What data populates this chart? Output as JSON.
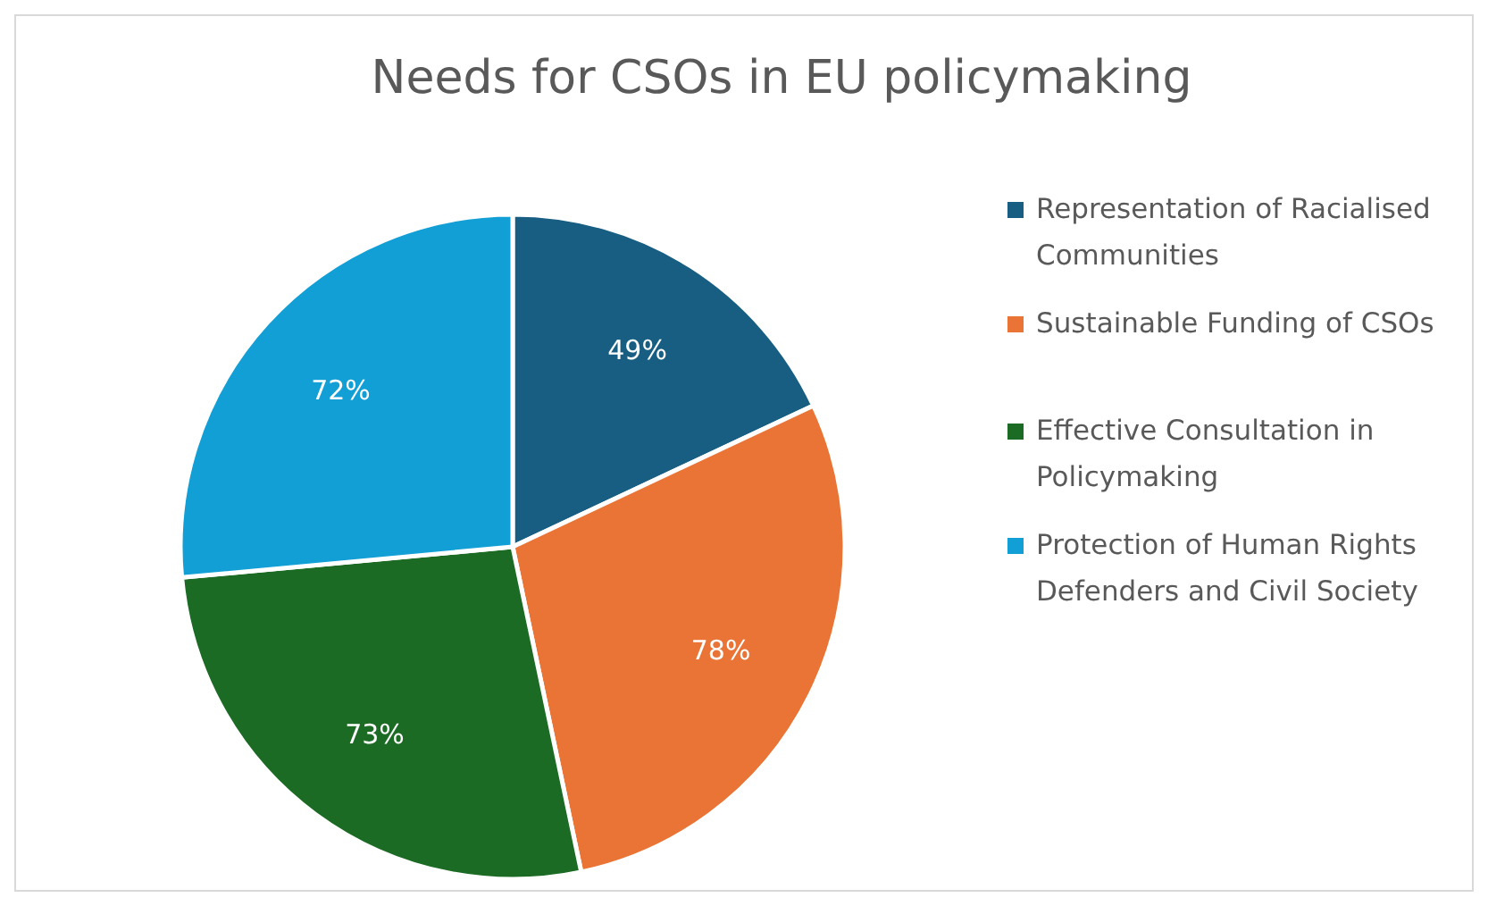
{
  "chart_data": {
    "type": "pie",
    "title": "Needs for CSOs in EU policymaking",
    "categories": [
      "Representation of Racialised Communities",
      "Sustainable Funding of CSOs",
      "Effective Consultation in Policymaking",
      "Protection of Human Rights Defenders and Civil Society"
    ],
    "values": [
      49,
      78,
      73,
      72
    ],
    "value_labels": [
      "49%",
      "78%",
      "73%",
      "72%"
    ],
    "colors": [
      "#175e82",
      "#e97435",
      "#1c6b25",
      "#129fd6"
    ],
    "legend": "right"
  }
}
